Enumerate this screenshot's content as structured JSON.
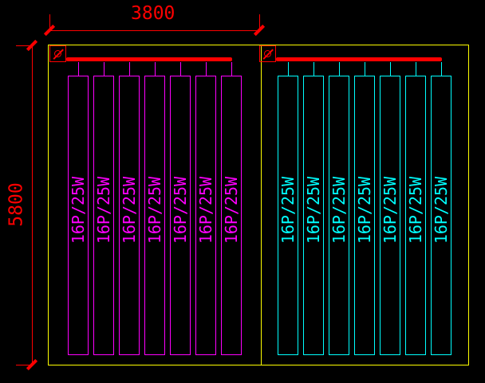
{
  "drawing": {
    "dimensions": {
      "width_label": "3800",
      "height_label": "5800"
    },
    "compartments": [
      {
        "side": "left",
        "color": "#ff00ff",
        "breaker_symbol": "diameter-circle-slash",
        "panels": [
          "16P/25W",
          "16P/25W",
          "16P/25W",
          "16P/25W",
          "16P/25W",
          "16P/25W",
          "16P/25W"
        ]
      },
      {
        "side": "right",
        "color": "#00ffff",
        "breaker_symbol": "diameter-circle-slash",
        "panels": [
          "16P/25W",
          "16P/25W",
          "16P/25W",
          "16P/25W",
          "16P/25W",
          "16P/25W",
          "16P/25W"
        ]
      }
    ],
    "colors": {
      "background": "#000000",
      "dimension_red": "#ff0000",
      "busbar_red": "#ff0000",
      "enclosure_yellow": "#ffff00"
    }
  }
}
